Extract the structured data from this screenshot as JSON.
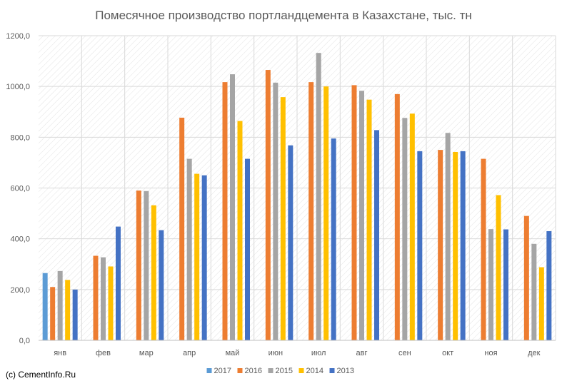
{
  "chart_data": {
    "type": "bar",
    "title": "Помесячное производство портландцемента в Казахстане, тыс. тн",
    "xlabel": "",
    "ylabel": "",
    "ylim": [
      0,
      1200
    ],
    "yticks": [
      "0,0",
      "200,0",
      "400,0",
      "600,0",
      "800,0",
      "1000,0",
      "1200,0"
    ],
    "categories": [
      "янв",
      "фев",
      "мар",
      "апр",
      "май",
      "июн",
      "июл",
      "авг",
      "сен",
      "окт",
      "ноя",
      "дек"
    ],
    "grid": true,
    "legend_position": "bottom",
    "series": [
      {
        "name": "2017",
        "color": "#5B9BD5",
        "values": [
          265,
          null,
          null,
          null,
          null,
          null,
          null,
          null,
          null,
          null,
          null,
          null
        ]
      },
      {
        "name": "2016",
        "color": "#ED7D31",
        "values": [
          210,
          333,
          590,
          877,
          1017,
          1065,
          1017,
          1005,
          970,
          750,
          715,
          490
        ]
      },
      {
        "name": "2015",
        "color": "#A5A5A5",
        "values": [
          273,
          327,
          588,
          715,
          1048,
          1015,
          1132,
          983,
          876,
          817,
          438,
          380
        ]
      },
      {
        "name": "2014",
        "color": "#FFC000",
        "values": [
          238,
          291,
          532,
          656,
          864,
          958,
          1000,
          948,
          893,
          742,
          572,
          288
        ]
      },
      {
        "name": "2013",
        "color": "#4472C4",
        "values": [
          200,
          448,
          434,
          650,
          715,
          768,
          795,
          828,
          745,
          745,
          437,
          430
        ]
      }
    ]
  },
  "footer": {
    "copyright": "(c) CementInfo.Ru"
  }
}
